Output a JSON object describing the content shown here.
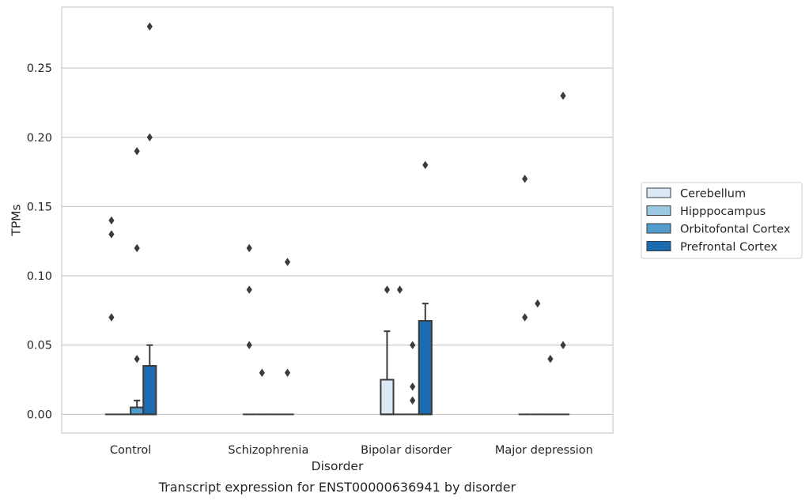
{
  "caption": "Transcript expression for ENST00000636941 by disorder",
  "chart_data": {
    "type": "box",
    "xlabel": "Disorder",
    "ylabel": "TPMs",
    "ylim": [
      -0.0135,
      0.294
    ],
    "yticks": [
      "0.00",
      "0.05",
      "0.10",
      "0.15",
      "0.20",
      "0.25"
    ],
    "grid": "horizontal",
    "legend_position": "right",
    "categories": [
      "Control",
      "Schizophrenia",
      "Bipolar disorder",
      "Major depression"
    ],
    "series": [
      {
        "name": "Cerebellum",
        "color": "#dbe9f6",
        "boxes": [
          {
            "q1": 0,
            "median": 0,
            "q3": 0,
            "whisker_low": 0,
            "whisker_high": 0,
            "outliers": [
              0.07,
              0.13,
              0.14
            ]
          },
          {
            "q1": 0,
            "median": 0,
            "q3": 0,
            "whisker_low": 0,
            "whisker_high": 0,
            "outliers": [
              0.05,
              0.09,
              0.12
            ]
          },
          {
            "q1": 0,
            "median": 0,
            "q3": 0.025,
            "whisker_low": 0,
            "whisker_high": 0.06,
            "outliers": [
              0.09
            ]
          },
          {
            "q1": 0,
            "median": 0,
            "q3": 0,
            "whisker_low": 0,
            "whisker_high": 0,
            "outliers": [
              0.07,
              0.17
            ]
          }
        ]
      },
      {
        "name": "Hipppocampus",
        "color": "#9ac8e0",
        "boxes": [
          {
            "q1": 0,
            "median": 0,
            "q3": 0,
            "whisker_low": 0,
            "whisker_high": 0,
            "outliers": []
          },
          {
            "q1": 0,
            "median": 0,
            "q3": 0,
            "whisker_low": 0,
            "whisker_high": 0,
            "outliers": [
              0.03
            ]
          },
          {
            "q1": 0,
            "median": 0,
            "q3": 0,
            "whisker_low": 0,
            "whisker_high": 0,
            "outliers": [
              0.09
            ]
          },
          {
            "q1": 0,
            "median": 0,
            "q3": 0,
            "whisker_low": 0,
            "whisker_high": 0,
            "outliers": [
              0.08
            ]
          }
        ]
      },
      {
        "name": "Orbitofontal Cortex",
        "color": "#529dcc",
        "boxes": [
          {
            "q1": 0,
            "median": 0,
            "q3": 0.005,
            "whisker_low": 0,
            "whisker_high": 0.01,
            "outliers": [
              0.04,
              0.12,
              0.19
            ]
          },
          {
            "q1": 0,
            "median": 0,
            "q3": 0,
            "whisker_low": 0,
            "whisker_high": 0,
            "outliers": []
          },
          {
            "q1": 0,
            "median": 0,
            "q3": 0,
            "whisker_low": 0,
            "whisker_high": 0,
            "outliers": [
              0.01,
              0.02,
              0.05
            ]
          },
          {
            "q1": 0,
            "median": 0,
            "q3": 0,
            "whisker_low": 0,
            "whisker_high": 0,
            "outliers": [
              0.04
            ]
          }
        ]
      },
      {
        "name": "Prefrontal Cortex",
        "color": "#1c6aaf",
        "boxes": [
          {
            "q1": 0,
            "median": 0,
            "q3": 0.035,
            "whisker_low": 0,
            "whisker_high": 0.05,
            "outliers": [
              0.2,
              0.28
            ]
          },
          {
            "q1": 0,
            "median": 0,
            "q3": 0,
            "whisker_low": 0,
            "whisker_high": 0,
            "outliers": [
              0.03,
              0.11
            ]
          },
          {
            "q1": 0,
            "median": 0,
            "q3": 0.0675,
            "whisker_low": 0,
            "whisker_high": 0.08,
            "outliers": [
              0.18
            ]
          },
          {
            "q1": 0,
            "median": 0,
            "q3": 0,
            "whisker_low": 0,
            "whisker_high": 0,
            "outliers": [
              0.05,
              0.23
            ]
          }
        ]
      }
    ]
  }
}
